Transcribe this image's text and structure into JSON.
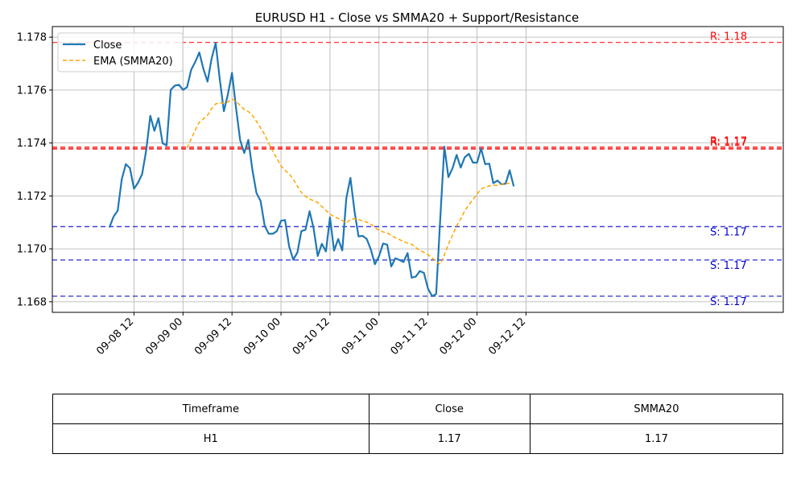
{
  "chart_data": {
    "type": "line",
    "title": "EURUSD H1 - Close vs SMMA20 + Support/Resistance",
    "xlabel": "",
    "ylabel": "",
    "x_range_hours": [
      -8,
      171
    ],
    "ylim": [
      1.1676,
      1.1784
    ],
    "x_ticks": [
      {
        "hour": 12,
        "label": "09-08 12"
      },
      {
        "hour": 24,
        "label": "09-09 00"
      },
      {
        "hour": 36,
        "label": "09-09 12"
      },
      {
        "hour": 48,
        "label": "09-10 00"
      },
      {
        "hour": 60,
        "label": "09-10 12"
      },
      {
        "hour": 72,
        "label": "09-11 00"
      },
      {
        "hour": 84,
        "label": "09-11 12"
      },
      {
        "hour": 96,
        "label": "09-12 00"
      },
      {
        "hour": 108,
        "label": "09-12 12"
      }
    ],
    "y_ticks": [
      1.168,
      1.17,
      1.172,
      1.174,
      1.176,
      1.178
    ],
    "y_tick_labels": [
      "1.168",
      "1.170",
      "1.172",
      "1.174",
      "1.176",
      "1.178"
    ],
    "grid": true,
    "legend_position": "top-left",
    "series": [
      {
        "name": "Close",
        "color": "#1f77b4",
        "style": "solid",
        "points": [
          [
            6,
            1.17081
          ],
          [
            7,
            1.17122
          ],
          [
            8,
            1.17144
          ],
          [
            9,
            1.17262
          ],
          [
            10,
            1.1732
          ],
          [
            11,
            1.17305
          ],
          [
            12,
            1.17227
          ],
          [
            13,
            1.1725
          ],
          [
            14,
            1.17283
          ],
          [
            15,
            1.17374
          ],
          [
            16,
            1.17503
          ],
          [
            17,
            1.17446
          ],
          [
            18,
            1.17494
          ],
          [
            19,
            1.17399
          ],
          [
            20,
            1.17391
          ],
          [
            21,
            1.17601
          ],
          [
            22,
            1.17617
          ],
          [
            23,
            1.1762
          ],
          [
            24,
            1.17601
          ],
          [
            25,
            1.17611
          ],
          [
            26,
            1.17677
          ],
          [
            27,
            1.17706
          ],
          [
            28,
            1.17742
          ],
          [
            29,
            1.1768
          ],
          [
            30,
            1.17632
          ],
          [
            31,
            1.17718
          ],
          [
            32,
            1.17778
          ],
          [
            33,
            1.17641
          ],
          [
            34,
            1.1752
          ],
          [
            35,
            1.17584
          ],
          [
            36,
            1.17665
          ],
          [
            37,
            1.1753
          ],
          [
            38,
            1.17411
          ],
          [
            39,
            1.17362
          ],
          [
            40,
            1.17412
          ],
          [
            41,
            1.17297
          ],
          [
            42,
            1.17211
          ],
          [
            43,
            1.17181
          ],
          [
            44,
            1.17087
          ],
          [
            45,
            1.17057
          ],
          [
            46,
            1.17057
          ],
          [
            47,
            1.17067
          ],
          [
            48,
            1.17106
          ],
          [
            49,
            1.17109
          ],
          [
            50,
            1.17009
          ],
          [
            51,
            1.16959
          ],
          [
            52,
            1.16986
          ],
          [
            53,
            1.17067
          ],
          [
            54,
            1.17072
          ],
          [
            55,
            1.17142
          ],
          [
            56,
            1.17077
          ],
          [
            57,
            1.16973
          ],
          [
            58,
            1.17019
          ],
          [
            59,
            1.1699
          ],
          [
            60,
            1.17119
          ],
          [
            61,
            1.16993
          ],
          [
            62,
            1.17037
          ],
          [
            63,
            1.16994
          ],
          [
            64,
            1.17191
          ],
          [
            65,
            1.17268
          ],
          [
            66,
            1.17142
          ],
          [
            67,
            1.17047
          ],
          [
            68,
            1.17049
          ],
          [
            69,
            1.17037
          ],
          [
            70,
            1.16997
          ],
          [
            71,
            1.16942
          ],
          [
            72,
            1.16972
          ],
          [
            73,
            1.1702
          ],
          [
            74,
            1.17016
          ],
          [
            75,
            1.16933
          ],
          [
            76,
            1.16964
          ],
          [
            77,
            1.16958
          ],
          [
            78,
            1.1695
          ],
          [
            79,
            1.16984
          ],
          [
            80,
            1.16891
          ],
          [
            81,
            1.16895
          ],
          [
            82,
            1.16916
          ],
          [
            83,
            1.16909
          ],
          [
            84,
            1.16849
          ],
          [
            85,
            1.16821
          ],
          [
            86,
            1.16829
          ],
          [
            87,
            1.17114
          ],
          [
            88,
            1.17386
          ],
          [
            89,
            1.17271
          ],
          [
            90,
            1.17304
          ],
          [
            91,
            1.17355
          ],
          [
            92,
            1.17307
          ],
          [
            93,
            1.17346
          ],
          [
            94,
            1.17359
          ],
          [
            95,
            1.17326
          ],
          [
            96,
            1.17326
          ],
          [
            97,
            1.17379
          ],
          [
            98,
            1.1732
          ],
          [
            99,
            1.17322
          ],
          [
            100,
            1.17248
          ],
          [
            101,
            1.17258
          ],
          [
            102,
            1.17244
          ],
          [
            103,
            1.17246
          ],
          [
            104,
            1.17297
          ],
          [
            105,
            1.17236
          ]
        ]
      },
      {
        "name": "EMA (SMMA20)",
        "color": "#ffa500",
        "style": "dashed",
        "points": [
          [
            25,
            1.17381
          ],
          [
            26,
            1.17415
          ],
          [
            27,
            1.17449
          ],
          [
            28,
            1.17478
          ],
          [
            29,
            1.17491
          ],
          [
            30,
            1.17505
          ],
          [
            31,
            1.17529
          ],
          [
            32,
            1.17548
          ],
          [
            33,
            1.17552
          ],
          [
            34,
            1.1755
          ],
          [
            35,
            1.17555
          ],
          [
            36,
            1.17566
          ],
          [
            37,
            1.17557
          ],
          [
            38,
            1.17542
          ],
          [
            39,
            1.17527
          ],
          [
            40,
            1.17519
          ],
          [
            41,
            1.17504
          ],
          [
            42,
            1.17482
          ],
          [
            43,
            1.17457
          ],
          [
            44,
            1.17431
          ],
          [
            45,
            1.17399
          ],
          [
            46,
            1.17369
          ],
          [
            47,
            1.17342
          ],
          [
            48,
            1.17313
          ],
          [
            49,
            1.17297
          ],
          [
            50,
            1.17283
          ],
          [
            51,
            1.17263
          ],
          [
            52,
            1.17237
          ],
          [
            53,
            1.17213
          ],
          [
            54,
            1.17198
          ],
          [
            55,
            1.17188
          ],
          [
            56,
            1.17182
          ],
          [
            57,
            1.17175
          ],
          [
            58,
            1.1716
          ],
          [
            59,
            1.17145
          ],
          [
            60,
            1.17131
          ],
          [
            61,
            1.17122
          ],
          [
            62,
            1.17115
          ],
          [
            63,
            1.17107
          ],
          [
            64,
            1.17098
          ],
          [
            65,
            1.17111
          ],
          [
            66,
            1.17114
          ],
          [
            67,
            1.17111
          ],
          [
            68,
            1.17105
          ],
          [
            69,
            1.17101
          ],
          [
            70,
            1.17093
          ],
          [
            71,
            1.17081
          ],
          [
            72,
            1.1707
          ],
          [
            73,
            1.17064
          ],
          [
            74,
            1.1706
          ],
          [
            75,
            1.17051
          ],
          [
            76,
            1.17042
          ],
          [
            77,
            1.17035
          ],
          [
            78,
            1.17027
          ],
          [
            79,
            1.17022
          ],
          [
            80,
            1.17017
          ],
          [
            81,
            1.17005
          ],
          [
            82,
            1.16994
          ],
          [
            83,
            1.16987
          ],
          [
            84,
            1.16978
          ],
          [
            85,
            1.16966
          ],
          [
            86,
            1.16952
          ],
          [
            87,
            1.16942
          ],
          [
            88,
            1.16977
          ],
          [
            89,
            1.17017
          ],
          [
            90,
            1.17051
          ],
          [
            91,
            1.17087
          ],
          [
            92,
            1.17113
          ],
          [
            93,
            1.17143
          ],
          [
            94,
            1.17166
          ],
          [
            95,
            1.17186
          ],
          [
            96,
            1.17207
          ],
          [
            97,
            1.17226
          ],
          [
            98,
            1.17233
          ],
          [
            99,
            1.17238
          ],
          [
            100,
            1.1724
          ],
          [
            101,
            1.1724
          ],
          [
            102,
            1.17244
          ],
          [
            103,
            1.17247
          ],
          [
            104,
            1.17247
          ]
        ]
      }
    ],
    "levels": [
      {
        "kind": "resistance",
        "value": 1.1778,
        "label": "R: 1.18",
        "color": "#ff0000",
        "show_label": true
      },
      {
        "kind": "resistance",
        "value": 1.17385,
        "label": "R: 1.17",
        "color": "#ff0000",
        "show_label": true
      },
      {
        "kind": "resistance",
        "value": 1.1738,
        "label": "R: 1.17",
        "color": "#ff0000",
        "show_label": true
      },
      {
        "kind": "resistance",
        "value": 1.17377,
        "label": "",
        "color": "#ff0000",
        "show_label": false
      },
      {
        "kind": "support",
        "value": 1.17084,
        "label": "S: 1.17",
        "color": "#0000cc",
        "show_label": true
      },
      {
        "kind": "support",
        "value": 1.16958,
        "label": "S: 1.17",
        "color": "#0000cc",
        "show_label": true
      },
      {
        "kind": "support",
        "value": 1.16821,
        "label": "S: 1.17",
        "color": "#0000cc",
        "show_label": true
      }
    ]
  },
  "summary_table": {
    "headers": [
      "Timeframe",
      "Close",
      "SMMA20"
    ],
    "row": [
      "H1",
      "1.17",
      "1.17"
    ]
  }
}
